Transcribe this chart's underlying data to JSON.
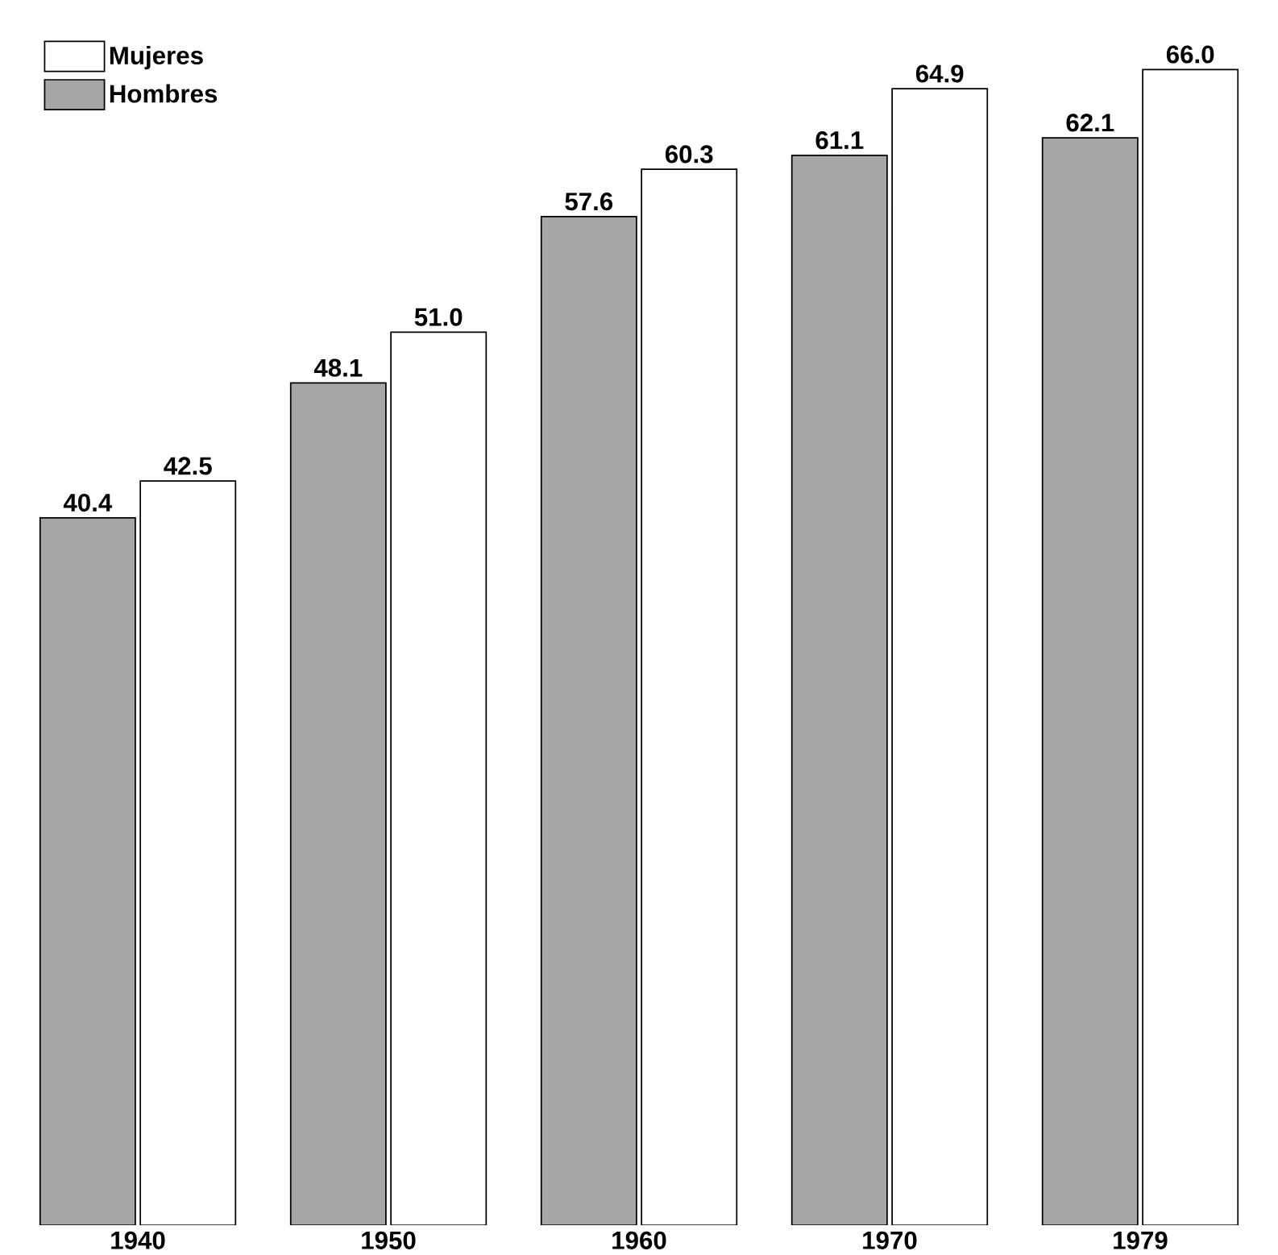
{
  "chart_data": {
    "type": "bar",
    "categories": [
      "1940",
      "1950",
      "1960",
      "1970",
      "1979"
    ],
    "series": [
      {
        "name": "Hombres",
        "color": "#a6a6a6",
        "values": [
          40.4,
          48.1,
          57.6,
          61.1,
          62.1
        ],
        "value_labels": [
          "40.4",
          "48.1",
          "57.6",
          "61.1",
          "62.1"
        ]
      },
      {
        "name": "Mujeres",
        "color": "#ffffff",
        "values": [
          42.5,
          51.0,
          60.3,
          64.9,
          66.0
        ],
        "value_labels": [
          "42.5",
          "51.0",
          "60.3",
          "64.9",
          "66.0"
        ]
      }
    ],
    "legend": "top left"
  }
}
